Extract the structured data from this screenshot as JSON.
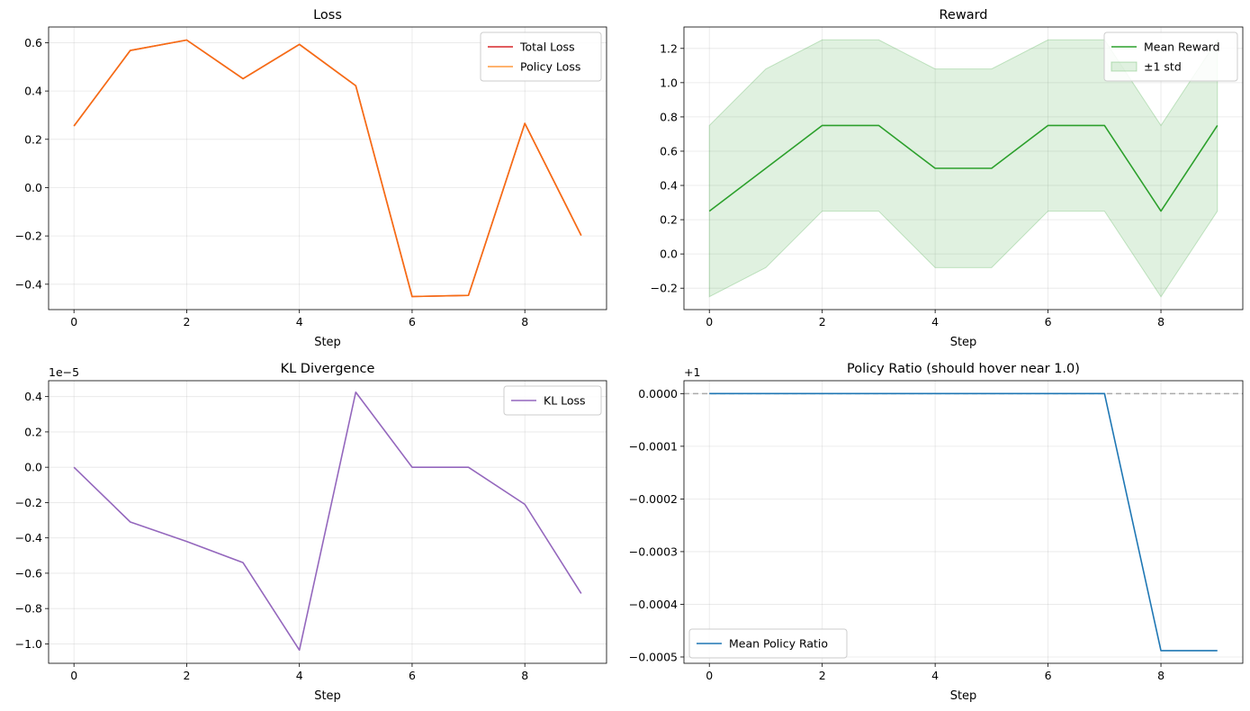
{
  "chart_data": [
    {
      "id": "loss",
      "type": "line",
      "title": "Loss",
      "xlabel": "Step",
      "ylabel": "",
      "xlim": [
        -0.45,
        9.45
      ],
      "ylim": [
        -0.505,
        0.665
      ],
      "xticks": [
        0,
        2,
        4,
        6,
        8
      ],
      "xtick_labels": [
        "0",
        "2",
        "4",
        "6",
        "8"
      ],
      "yticks": [
        -0.4,
        -0.2,
        0.0,
        0.2,
        0.4,
        0.6
      ],
      "ytick_labels": [
        "−0.4",
        "−0.2",
        "0.0",
        "0.2",
        "0.4",
        "0.6"
      ],
      "grid": true,
      "legend_position": "top-right",
      "x": [
        0,
        1,
        2,
        3,
        4,
        5,
        6,
        7,
        8,
        9
      ],
      "series": [
        {
          "name": "Total Loss",
          "color": "#d62728",
          "values": [
            0.255,
            0.568,
            0.611,
            0.451,
            0.593,
            0.422,
            -0.451,
            -0.446,
            0.266,
            -0.198
          ]
        },
        {
          "name": "Policy Loss",
          "color": "#ff7f0e",
          "alpha": 0.8,
          "values": [
            0.255,
            0.568,
            0.611,
            0.451,
            0.593,
            0.422,
            -0.451,
            -0.446,
            0.266,
            -0.198
          ]
        }
      ]
    },
    {
      "id": "reward",
      "type": "area",
      "title": "Reward",
      "xlabel": "Step",
      "ylabel": "",
      "xlim": [
        -0.45,
        9.45
      ],
      "ylim": [
        -0.325,
        1.325
      ],
      "xticks": [
        0,
        2,
        4,
        6,
        8
      ],
      "xtick_labels": [
        "0",
        "2",
        "4",
        "6",
        "8"
      ],
      "yticks": [
        -0.2,
        0.0,
        0.2,
        0.4,
        0.6,
        0.8,
        1.0,
        1.2
      ],
      "ytick_labels": [
        "−0.2",
        "0.0",
        "0.2",
        "0.4",
        "0.6",
        "0.8",
        "1.0",
        "1.2"
      ],
      "grid": true,
      "legend_position": "top-right",
      "x": [
        0,
        1,
        2,
        3,
        4,
        5,
        6,
        7,
        8,
        9
      ],
      "series": [
        {
          "name": "Mean Reward",
          "color": "#2ca02c",
          "values": [
            0.25,
            0.5,
            0.75,
            0.75,
            0.5,
            0.5,
            0.75,
            0.75,
            0.25,
            0.75
          ]
        }
      ],
      "band": {
        "name": "±1 std",
        "color": "#2ca02c",
        "alpha": 0.15,
        "lower": [
          -0.25,
          -0.08,
          0.25,
          0.25,
          -0.08,
          -0.08,
          0.25,
          0.25,
          -0.25,
          0.25
        ],
        "upper": [
          0.75,
          1.08,
          1.25,
          1.25,
          1.08,
          1.08,
          1.25,
          1.25,
          0.75,
          1.25
        ]
      }
    },
    {
      "id": "kl",
      "type": "line",
      "title": "KL Divergence",
      "xlabel": "Step",
      "ylabel": "",
      "offset_text": "1e−5",
      "xlim": [
        -0.45,
        9.45
      ],
      "ylim": [
        -1.11,
        0.49
      ],
      "xticks": [
        0,
        2,
        4,
        6,
        8
      ],
      "xtick_labels": [
        "0",
        "2",
        "4",
        "6",
        "8"
      ],
      "yticks": [
        -1.0,
        -0.8,
        -0.6,
        -0.4,
        -0.2,
        0.0,
        0.2,
        0.4
      ],
      "ytick_labels": [
        "−1.0",
        "−0.8",
        "−0.6",
        "−0.4",
        "−0.2",
        "0.0",
        "0.2",
        "0.4"
      ],
      "grid": true,
      "legend_position": "top-right",
      "x": [
        0,
        1,
        2,
        3,
        4,
        5,
        6,
        7,
        8,
        9
      ],
      "series": [
        {
          "name": "KL Loss",
          "color": "#9467bd",
          "values": [
            0.0,
            -0.31,
            -0.42,
            -0.54,
            -1.035,
            0.425,
            0.0,
            0.0,
            -0.21,
            -0.715
          ]
        }
      ]
    },
    {
      "id": "ratio",
      "type": "line",
      "title": "Policy Ratio (should hover near 1.0)",
      "xlabel": "Step",
      "ylabel": "",
      "offset_text": "+1",
      "xlim": [
        -0.45,
        9.45
      ],
      "ylim": [
        -0.000512,
        2.45e-05
      ],
      "xticks": [
        0,
        2,
        4,
        6,
        8
      ],
      "xtick_labels": [
        "0",
        "2",
        "4",
        "6",
        "8"
      ],
      "yticks": [
        -0.0005,
        -0.0004,
        -0.0003,
        -0.0002,
        -0.0001,
        0.0
      ],
      "ytick_labels": [
        "−0.0005",
        "−0.0004",
        "−0.0003",
        "−0.0002",
        "−0.0001",
        "0.0000"
      ],
      "grid": true,
      "legend_position": "bottom-left",
      "reference_line": {
        "y": 0.0,
        "style": "dashed",
        "color": "#aaaaaa"
      },
      "x": [
        0,
        1,
        2,
        3,
        4,
        5,
        6,
        7,
        8,
        9
      ],
      "series": [
        {
          "name": "Mean Policy Ratio",
          "color": "#1f77b4",
          "values": [
            0.0,
            0.0,
            0.0,
            0.0,
            0.0,
            0.0,
            0.0,
            0.0,
            -0.000488,
            -0.000488
          ]
        }
      ]
    }
  ]
}
